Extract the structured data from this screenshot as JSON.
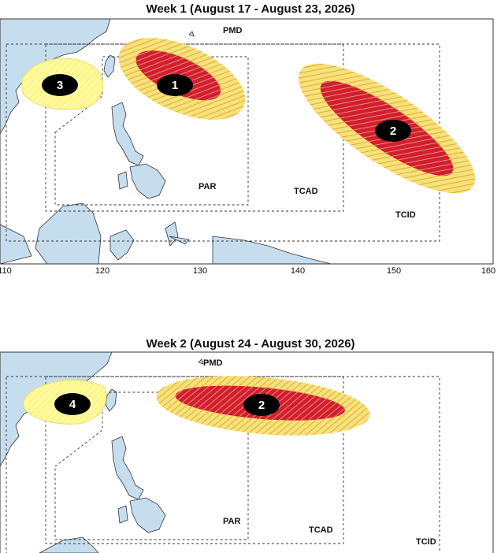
{
  "colors": {
    "land": "#c6ddee",
    "land_stroke": "#333333",
    "outer_zone": "#f6e27a",
    "inner_zone": "#d21f2c",
    "marker": "#000000",
    "outer_hatch": "#e3a83a",
    "inner_hatch": "#ffffff",
    "low_zone": "#fffb9c"
  },
  "panels": [
    {
      "title": "Week 1 (August 17 - August 23, 2026)",
      "region_labels": {
        "pmd": "PMD",
        "par": "PAR",
        "tcad": "TCAD",
        "tcid": "TCID"
      },
      "x_ticks": [
        "110",
        "120",
        "130",
        "140",
        "150",
        "160"
      ],
      "areas": [
        {
          "label": "1",
          "level": "high"
        },
        {
          "label": "2",
          "level": "high"
        },
        {
          "label": "3",
          "level": "low"
        }
      ]
    },
    {
      "title": "Week 2 (August 24 - August 30, 2026)",
      "region_labels": {
        "pmd": "PMD",
        "par": "PAR",
        "tcad": "TCAD",
        "tcid": "TCID"
      },
      "areas": [
        {
          "label": "2",
          "level": "high"
        },
        {
          "label": "4",
          "level": "low"
        }
      ]
    }
  ]
}
